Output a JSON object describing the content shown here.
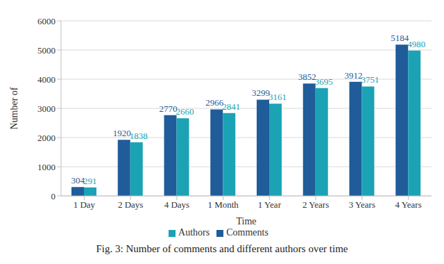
{
  "chart_data": {
    "type": "bar",
    "title": "Fig. 3: Number of comments and different authors over time",
    "x_label": "Time",
    "y_label": "Number of",
    "categories": [
      "1 Day",
      "2 Days",
      "4 Days",
      "1 Month",
      "1 Year",
      "2 Years",
      "3 Years",
      "4 Years"
    ],
    "series": [
      {
        "name": "Comments",
        "color": "#1f5c99",
        "values": [
          304,
          1920,
          2770,
          2966,
          3299,
          3852,
          3912,
          5184
        ]
      },
      {
        "name": "Authors",
        "color": "#1ba3b5",
        "values": [
          291,
          1838,
          2660,
          2841,
          3161,
          3695,
          3751,
          4980
        ]
      }
    ],
    "ylim": [
      0,
      6000
    ],
    "yticks": [
      0,
      1000,
      2000,
      3000,
      4000,
      5000,
      6000
    ],
    "grid": true,
    "data_labels": true,
    "legend": "bottom"
  }
}
